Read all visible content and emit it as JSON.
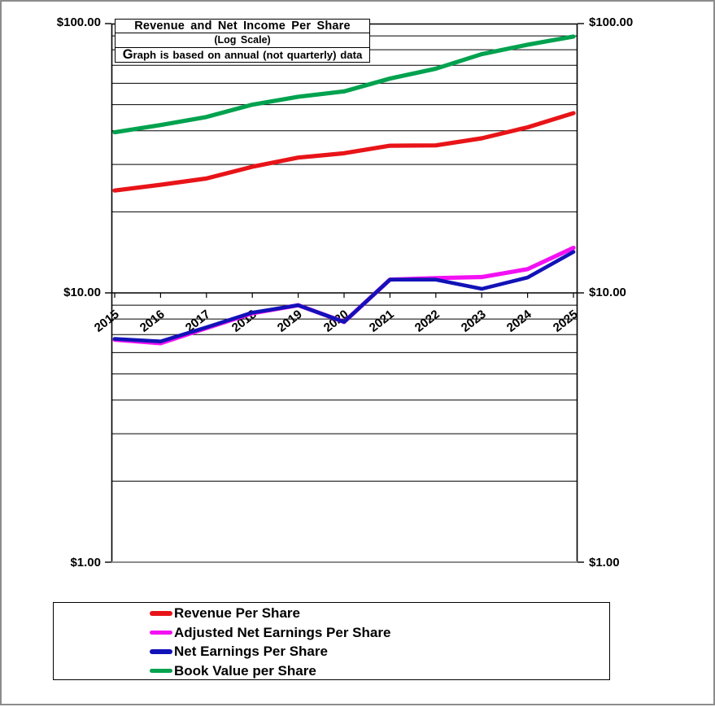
{
  "window": {
    "background": "#ffffff",
    "frame_color": "#8c8c8c"
  },
  "chart_data": {
    "type": "line",
    "title": "Revenue and Net Income Per Share",
    "subtitle": "(Log Scale)",
    "note": "Graph is based on annual (not quarterly) data",
    "scale": "log",
    "x": [
      2015,
      2016,
      2017,
      2018,
      2019,
      2020,
      2021,
      2022,
      2023,
      2024,
      2025
    ],
    "series": [
      {
        "name": "Revenue Per Share",
        "color": "#e81418",
        "values": [
          24.0,
          25.2,
          26.6,
          29.4,
          31.8,
          33.0,
          35.2,
          35.3,
          37.5,
          41.2,
          46.5
        ]
      },
      {
        "name": "Adjusted Net Earnings Per Share",
        "color": "#f311f3",
        "values": [
          6.7,
          6.5,
          7.4,
          8.4,
          9.0,
          7.8,
          11.2,
          11.35,
          11.45,
          12.25,
          14.7
        ]
      },
      {
        "name": "Net Earnings Per Share",
        "color": "#1212b8",
        "values": [
          6.75,
          6.6,
          7.45,
          8.45,
          9.0,
          7.8,
          11.2,
          11.2,
          10.35,
          11.4,
          14.2
        ]
      },
      {
        "name": "Book Value per Share",
        "color": "#00a24f",
        "values": [
          39.5,
          42.0,
          45.0,
          50.0,
          53.5,
          56.0,
          62.5,
          68.0,
          77.0,
          83.5,
          89.5
        ]
      }
    ],
    "ylim": [
      1,
      100
    ],
    "yticks": [
      {
        "label": "$100.00",
        "value": 100
      },
      {
        "label": "$10.00",
        "value": 10
      },
      {
        "label": "$1.00",
        "value": 1
      }
    ],
    "grid": "horizontal log gridlines at 2-9, 20-90",
    "legend_position": "bottom",
    "axis_labels_on_both_sides": true
  }
}
